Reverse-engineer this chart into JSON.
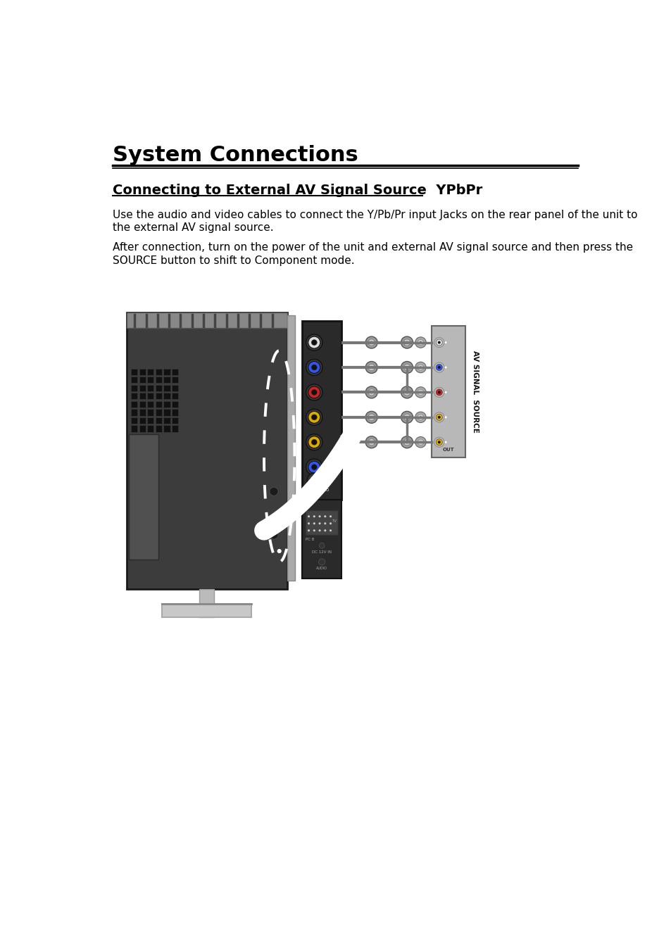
{
  "title": "System Connections",
  "subtitle": "Connecting to External AV Signal Source  YPbPr",
  "line1a": "Use the audio and video cables to connect the Y/Pb/Pr input Jacks on the rear panel of the unit to",
  "line1b": "the external AV signal source.",
  "line2a": "After connection, turn on the power of the unit and external AV signal source and then press the",
  "line2b": "SOURCE button to shift to Component mode.",
  "bg_color": "#ffffff",
  "text_color": "#000000",
  "title_fontsize": 22,
  "subtitle_fontsize": 14,
  "body_fontsize": 11,
  "av_label": "AV SIGNAL  SOURCE"
}
